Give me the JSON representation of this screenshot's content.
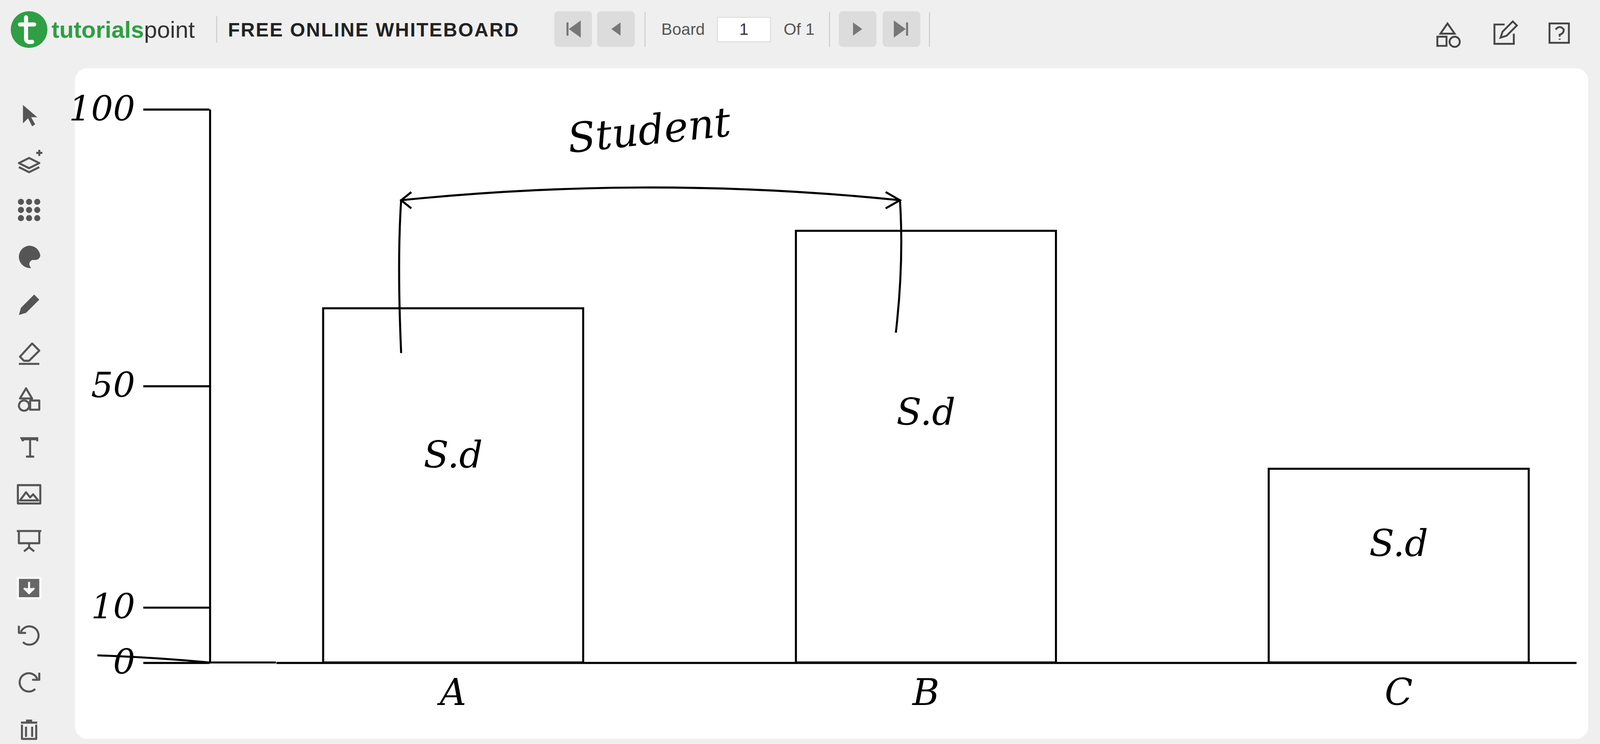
{
  "app": {
    "logo": {
      "first": "tutorials",
      "second": "point"
    },
    "title": "FREE ONLINE WHITEBOARD",
    "board_label": "Board",
    "board_number": 1,
    "board_total_label": "Of 1"
  },
  "chart_data": {
    "type": "bar",
    "title": "Student",
    "categories": [
      "A",
      "B",
      "C"
    ],
    "values": [
      64,
      78,
      35
    ],
    "annotations": [
      "S.d",
      "S.d",
      "S.d"
    ],
    "color": "#000000",
    "ylim": [
      0,
      100
    ],
    "yticks": [
      0,
      10,
      50,
      100
    ],
    "grid": false
  }
}
